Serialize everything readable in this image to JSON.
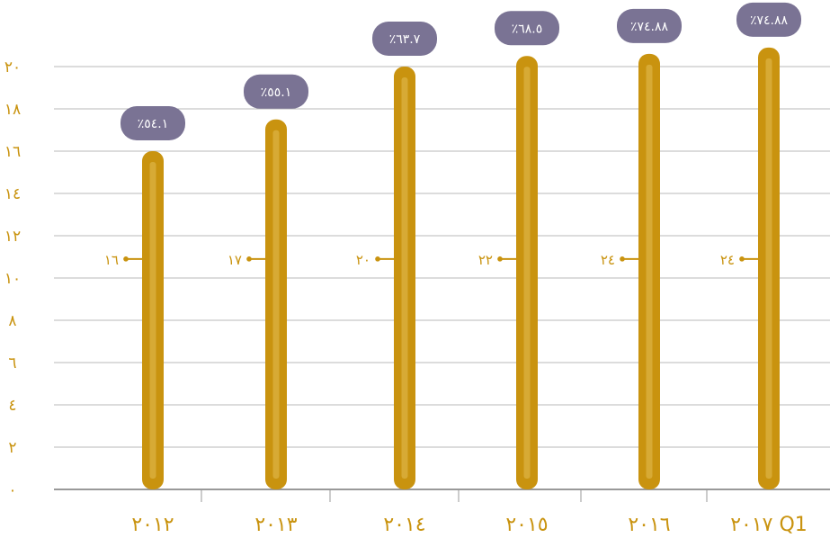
{
  "chart_data": {
    "type": "bar",
    "categories": [
      "٢٠١٢",
      "٢٠١٣",
      "٢٠١٤",
      "٢٠١٥",
      "٢٠١٦",
      "٢٠١٧ Q1"
    ],
    "values": [
      16,
      17.5,
      20,
      20.5,
      20.6,
      20.9
    ],
    "y_ticks": [
      "٠",
      "٢",
      "٤",
      "٦",
      "٨",
      "١٠",
      "١٢",
      "١٤",
      "١٦",
      "١٨",
      "٢٠"
    ],
    "ylim": [
      0,
      21
    ],
    "percent_labels": [
      "٪٥٤.١",
      "٪٥٥.١",
      "٪٦٣.٧",
      "٪٦٨.٥",
      "٪٧٤.٨٨",
      "٪٧٤.٨٨"
    ],
    "count_labels": [
      "١٦",
      "١٧",
      "٢٠",
      "٢٢",
      "٢٤",
      "٢٤"
    ],
    "count_level": 10.9,
    "grid": true,
    "colors": {
      "bar": "#c9930f",
      "bar_highlight": "#e2bd55",
      "badge": "#7a7394",
      "badge_text": "#ffffff",
      "axis_text": "#c9930f",
      "grid": "#b8b8b8",
      "axis": "#999999"
    }
  }
}
